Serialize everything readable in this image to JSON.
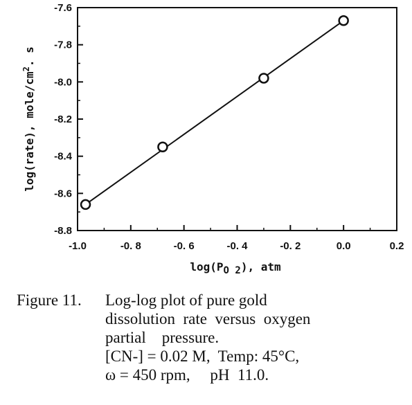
{
  "chart_data": {
    "type": "scatter",
    "title": "",
    "xlabel": "log(P",
    "xlabel_sub": "O 2",
    "xlabel_suffix": "),  atm",
    "ylabel": "log(rate),    mole/cm",
    "ylabel_sup": "2",
    "ylabel_suffix": ". s",
    "xlim": [
      -1.0,
      0.2
    ],
    "ylim": [
      -8.8,
      -7.6
    ],
    "x_ticks": [
      -1.0,
      -0.8,
      -0.6,
      -0.4,
      -0.2,
      0.0,
      0.2
    ],
    "x_tick_labels": [
      "-1.0",
      "-0. 8",
      "-0. 6",
      "-0. 4",
      "-0. 2",
      "0.0",
      "0.2"
    ],
    "y_ticks": [
      -7.6,
      -7.8,
      -8.0,
      -8.2,
      -8.4,
      -8.6,
      -8.8
    ],
    "y_tick_labels": [
      "-7.6",
      "-7.8",
      "-8.0",
      "-8.2",
      "-8.4",
      "-8.6",
      "-8.8"
    ],
    "grid": false,
    "legend": "none",
    "series": [
      {
        "x": [
          -0.97,
          -0.68,
          -0.3,
          0.0
        ],
        "y": [
          -8.66,
          -8.35,
          -7.98,
          -7.67
        ],
        "marker": "open-circle",
        "fit_line": {
          "x": [
            -0.98,
            0.0
          ],
          "y": [
            -8.67,
            -7.67
          ]
        }
      }
    ]
  },
  "caption": {
    "label": "Figure 11.",
    "lines": [
      "Log-log plot of pure gold",
      "dissolution  rate  versus  oxygen",
      "partial    pressure.",
      "[CN-] = 0.02 M,  Temp: 45°C,",
      "ω = 450 rpm,     pH  11.0."
    ]
  }
}
